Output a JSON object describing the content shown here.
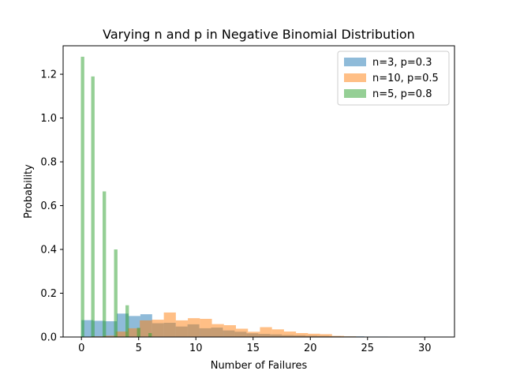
{
  "chart_data": {
    "type": "bar",
    "title": "Varying n and p in Negative Binomial Distribution",
    "xlabel": "Number of Failures",
    "ylabel": "Probability",
    "xlim": [
      -1.6,
      32.6
    ],
    "ylim": [
      0,
      1.33
    ],
    "xticks": [
      0,
      5,
      10,
      15,
      20,
      25,
      30
    ],
    "yticks": [
      0.0,
      0.2,
      0.4,
      0.6,
      0.8,
      1.0,
      1.2
    ],
    "ytick_labels": [
      "0.0",
      "0.2",
      "0.4",
      "0.6",
      "0.8",
      "1.0",
      "1.2"
    ],
    "legend_position": "top-right",
    "series": [
      {
        "name": "n=3, p=0.3",
        "color": "#1f77b4",
        "alpha": 0.5,
        "bins": [
          {
            "x0": 0.0,
            "x1": 1.03,
            "y": 0.077
          },
          {
            "x0": 1.03,
            "x1": 2.06,
            "y": 0.074
          },
          {
            "x0": 2.06,
            "x1": 3.09,
            "y": 0.072
          },
          {
            "x0": 3.09,
            "x1": 4.12,
            "y": 0.107
          },
          {
            "x0": 4.12,
            "x1": 5.15,
            "y": 0.096
          },
          {
            "x0": 5.15,
            "x1": 6.18,
            "y": 0.104
          },
          {
            "x0": 6.18,
            "x1": 7.21,
            "y": 0.063
          },
          {
            "x0": 7.21,
            "x1": 8.24,
            "y": 0.065
          },
          {
            "x0": 8.24,
            "x1": 9.27,
            "y": 0.048
          },
          {
            "x0": 9.27,
            "x1": 10.3,
            "y": 0.058
          },
          {
            "x0": 10.3,
            "x1": 11.33,
            "y": 0.04
          },
          {
            "x0": 11.33,
            "x1": 12.36,
            "y": 0.043
          },
          {
            "x0": 12.36,
            "x1": 13.39,
            "y": 0.03
          },
          {
            "x0": 13.39,
            "x1": 14.42,
            "y": 0.024
          },
          {
            "x0": 14.42,
            "x1": 15.45,
            "y": 0.017
          },
          {
            "x0": 15.45,
            "x1": 16.48,
            "y": 0.014
          },
          {
            "x0": 16.48,
            "x1": 17.51,
            "y": 0.012
          },
          {
            "x0": 17.51,
            "x1": 18.54,
            "y": 0.009
          },
          {
            "x0": 18.54,
            "x1": 19.57,
            "y": 0.008
          },
          {
            "x0": 19.57,
            "x1": 20.6,
            "y": 0.006
          },
          {
            "x0": 20.6,
            "x1": 21.63,
            "y": 0.005
          },
          {
            "x0": 21.63,
            "x1": 22.66,
            "y": 0.004
          },
          {
            "x0": 22.66,
            "x1": 23.69,
            "y": 0.003
          },
          {
            "x0": 23.69,
            "x1": 24.72,
            "y": 0.003
          },
          {
            "x0": 24.72,
            "x1": 25.75,
            "y": 0.002
          },
          {
            "x0": 25.75,
            "x1": 26.78,
            "y": 0.002
          },
          {
            "x0": 26.78,
            "x1": 27.81,
            "y": 0.001
          },
          {
            "x0": 27.81,
            "x1": 28.84,
            "y": 0.001
          },
          {
            "x0": 28.84,
            "x1": 29.87,
            "y": 0.001
          },
          {
            "x0": 29.87,
            "x1": 31.0,
            "y": 0.001
          }
        ]
      },
      {
        "name": "n=10, p=0.5",
        "color": "#ff7f0e",
        "alpha": 0.5,
        "bins": [
          {
            "x0": 0.9,
            "x1": 1.95,
            "y": 0.003
          },
          {
            "x0": 1.95,
            "x1": 3.0,
            "y": 0.006
          },
          {
            "x0": 3.0,
            "x1": 4.05,
            "y": 0.025
          },
          {
            "x0": 4.05,
            "x1": 5.1,
            "y": 0.04
          },
          {
            "x0": 5.1,
            "x1": 6.15,
            "y": 0.076
          },
          {
            "x0": 6.15,
            "x1": 7.2,
            "y": 0.079
          },
          {
            "x0": 7.2,
            "x1": 8.25,
            "y": 0.112
          },
          {
            "x0": 8.25,
            "x1": 9.3,
            "y": 0.076
          },
          {
            "x0": 9.3,
            "x1": 10.35,
            "y": 0.086
          },
          {
            "x0": 10.35,
            "x1": 11.4,
            "y": 0.083
          },
          {
            "x0": 11.4,
            "x1": 12.45,
            "y": 0.059
          },
          {
            "x0": 12.45,
            "x1": 13.5,
            "y": 0.054
          },
          {
            "x0": 13.5,
            "x1": 14.55,
            "y": 0.038
          },
          {
            "x0": 14.55,
            "x1": 15.6,
            "y": 0.024
          },
          {
            "x0": 15.6,
            "x1": 16.65,
            "y": 0.045
          },
          {
            "x0": 16.65,
            "x1": 17.7,
            "y": 0.035
          },
          {
            "x0": 17.7,
            "x1": 18.75,
            "y": 0.025
          },
          {
            "x0": 18.75,
            "x1": 19.8,
            "y": 0.018
          },
          {
            "x0": 19.8,
            "x1": 20.85,
            "y": 0.015
          },
          {
            "x0": 20.85,
            "x1": 21.9,
            "y": 0.013
          },
          {
            "x0": 21.9,
            "x1": 22.95,
            "y": 0.005
          },
          {
            "x0": 22.95,
            "x1": 24.0,
            "y": 0.003
          }
        ]
      },
      {
        "name": "n=5, p=0.8",
        "color": "#2ca02c",
        "alpha": 0.5,
        "bins": [
          {
            "x0": -0.05,
            "x1": 0.25,
            "y": 1.28
          },
          {
            "x0": 0.85,
            "x1": 1.15,
            "y": 1.19
          },
          {
            "x0": 1.85,
            "x1": 2.15,
            "y": 0.665
          },
          {
            "x0": 2.85,
            "x1": 3.15,
            "y": 0.4
          },
          {
            "x0": 3.85,
            "x1": 4.15,
            "y": 0.145
          },
          {
            "x0": 4.85,
            "x1": 5.15,
            "y": 0.042
          },
          {
            "x0": 5.85,
            "x1": 6.15,
            "y": 0.018
          }
        ]
      }
    ]
  }
}
